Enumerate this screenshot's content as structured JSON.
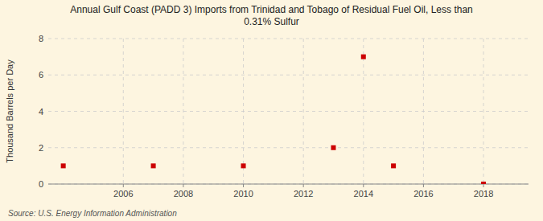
{
  "chart_data": {
    "type": "scatter",
    "title": "Annual Gulf Coast (PADD 3) Imports from Trinidad and Tobago of Residual Fuel Oil, Less than\n0.31% Sulfur",
    "ylabel": "Thousand Barrels per Day",
    "source": "Source: U.S. Energy Information Administration",
    "x": [
      2004,
      2007,
      2010,
      2013,
      2014,
      2015,
      2018
    ],
    "values": [
      1,
      1,
      1,
      2,
      7,
      1,
      0
    ],
    "color": "#cc0000",
    "marker": "square",
    "xlim": [
      2003.5,
      2019.5
    ],
    "ylim": [
      0,
      8
    ],
    "xticks": [
      2006,
      2008,
      2010,
      2012,
      2014,
      2016,
      2018
    ],
    "yticks": [
      0,
      2,
      4,
      6,
      8
    ],
    "grid": true
  }
}
